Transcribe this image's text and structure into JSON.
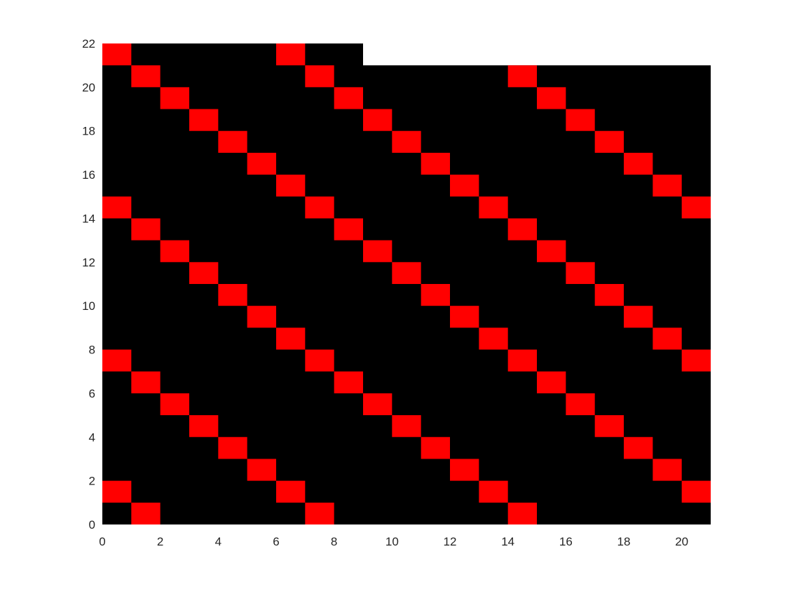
{
  "chart_data": {
    "type": "heatmap",
    "title": "",
    "xlabel": "",
    "ylabel": "",
    "xlim": [
      0,
      21
    ],
    "ylim": [
      0,
      22
    ],
    "x_ticks": [
      0,
      2,
      4,
      6,
      8,
      10,
      12,
      14,
      16,
      18,
      20
    ],
    "y_ticks": [
      0,
      2,
      4,
      6,
      8,
      10,
      12,
      14,
      16,
      18,
      20,
      22
    ],
    "x_tick_labels": [
      "0",
      "2",
      "4",
      "6",
      "8",
      "10",
      "12",
      "14",
      "16",
      "18",
      "20"
    ],
    "y_tick_labels": [
      "0",
      "2",
      "4",
      "6",
      "8",
      "10",
      "12",
      "14",
      "16",
      "18",
      "20",
      "22"
    ],
    "grid": false,
    "background_color": "#000000",
    "cell_color": "#ff0000",
    "filled_region": [
      {
        "x": [
          0,
          9
        ],
        "y": [
          0,
          22
        ]
      },
      {
        "x": [
          9,
          21
        ],
        "y": [
          0,
          21
        ]
      }
    ],
    "cells": [
      [
        0,
        21
      ],
      [
        1,
        20
      ],
      [
        2,
        19
      ],
      [
        3,
        18
      ],
      [
        4,
        17
      ],
      [
        5,
        16
      ],
      [
        6,
        15
      ],
      [
        7,
        14
      ],
      [
        8,
        13
      ],
      [
        9,
        12
      ],
      [
        10,
        11
      ],
      [
        11,
        10
      ],
      [
        12,
        9
      ],
      [
        13,
        8
      ],
      [
        14,
        7
      ],
      [
        15,
        6
      ],
      [
        16,
        5
      ],
      [
        17,
        4
      ],
      [
        18,
        3
      ],
      [
        19,
        2
      ],
      [
        20,
        1
      ],
      [
        0,
        14
      ],
      [
        1,
        13
      ],
      [
        2,
        12
      ],
      [
        3,
        11
      ],
      [
        4,
        10
      ],
      [
        5,
        9
      ],
      [
        6,
        8
      ],
      [
        7,
        7
      ],
      [
        8,
        6
      ],
      [
        9,
        5
      ],
      [
        10,
        4
      ],
      [
        11,
        3
      ],
      [
        12,
        2
      ],
      [
        13,
        1
      ],
      [
        14,
        0
      ],
      [
        0,
        7
      ],
      [
        1,
        6
      ],
      [
        2,
        5
      ],
      [
        3,
        4
      ],
      [
        4,
        3
      ],
      [
        5,
        2
      ],
      [
        6,
        1
      ],
      [
        7,
        0
      ],
      [
        0,
        1
      ],
      [
        1,
        0
      ],
      [
        6,
        21
      ],
      [
        7,
        20
      ],
      [
        8,
        19
      ],
      [
        9,
        18
      ],
      [
        10,
        17
      ],
      [
        11,
        16
      ],
      [
        12,
        15
      ],
      [
        13,
        14
      ],
      [
        14,
        13
      ],
      [
        15,
        12
      ],
      [
        16,
        11
      ],
      [
        17,
        10
      ],
      [
        18,
        9
      ],
      [
        19,
        8
      ],
      [
        20,
        7
      ],
      [
        14,
        20
      ],
      [
        15,
        19
      ],
      [
        16,
        18
      ],
      [
        17,
        17
      ],
      [
        18,
        16
      ],
      [
        19,
        15
      ],
      [
        20,
        14
      ]
    ]
  }
}
